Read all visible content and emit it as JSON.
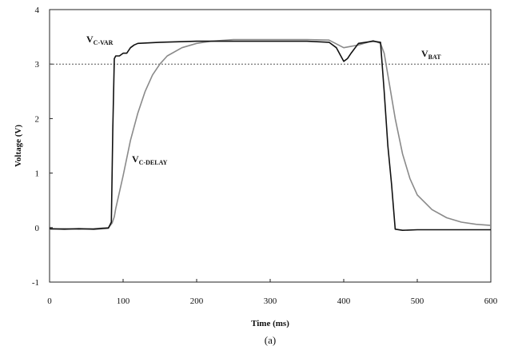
{
  "chart_data": {
    "type": "line",
    "title": "",
    "xlabel": "Time (ms)",
    "ylabel": "Voltage (V)",
    "xlim": [
      0,
      600
    ],
    "ylim": [
      -1,
      4
    ],
    "x_ticks": [
      "0",
      "100",
      "200",
      "300",
      "400",
      "500",
      "600"
    ],
    "y_ticks": [
      "4",
      "3",
      "2",
      "1",
      "0",
      "-1"
    ],
    "grid": false,
    "reference_line": {
      "label_main": "V",
      "label_sub": "BAT",
      "y": 3.0,
      "color": "#555555",
      "style": "dotted"
    },
    "series": [
      {
        "label_main": "V",
        "label_sub": "C-VAR",
        "color": "#111111",
        "x": [
          0,
          20,
          40,
          60,
          80,
          84,
          86,
          88,
          90,
          95,
          100,
          105,
          110,
          115,
          120,
          150,
          200,
          250,
          300,
          350,
          380,
          390,
          400,
          405,
          410,
          420,
          440,
          450,
          455,
          460,
          465,
          470,
          480,
          500,
          550,
          600
        ],
        "y": [
          -0.02,
          -0.03,
          -0.02,
          -0.03,
          -0.01,
          0.1,
          1.8,
          3.1,
          3.15,
          3.15,
          3.2,
          3.2,
          3.3,
          3.35,
          3.38,
          3.4,
          3.42,
          3.42,
          3.42,
          3.42,
          3.4,
          3.3,
          3.05,
          3.1,
          3.2,
          3.38,
          3.42,
          3.4,
          2.5,
          1.5,
          0.8,
          -0.03,
          -0.05,
          -0.04,
          -0.04,
          -0.04
        ]
      },
      {
        "label_main": "V",
        "label_sub": "C-DELAY",
        "color": "#8a8a8a",
        "x": [
          0,
          20,
          40,
          60,
          80,
          85,
          88,
          90,
          95,
          100,
          110,
          120,
          130,
          140,
          150,
          160,
          180,
          200,
          220,
          250,
          300,
          350,
          380,
          400,
          420,
          440,
          450,
          455,
          460,
          470,
          480,
          490,
          500,
          520,
          540,
          560,
          580,
          600
        ],
        "y": [
          -0.03,
          -0.02,
          -0.03,
          -0.02,
          0.0,
          0.08,
          0.2,
          0.35,
          0.65,
          0.95,
          1.6,
          2.1,
          2.5,
          2.8,
          3.0,
          3.15,
          3.3,
          3.38,
          3.42,
          3.45,
          3.45,
          3.45,
          3.44,
          3.3,
          3.35,
          3.43,
          3.38,
          3.2,
          2.8,
          2.0,
          1.35,
          0.9,
          0.6,
          0.33,
          0.18,
          0.1,
          0.06,
          0.04
        ]
      }
    ]
  },
  "caption": "(a)"
}
